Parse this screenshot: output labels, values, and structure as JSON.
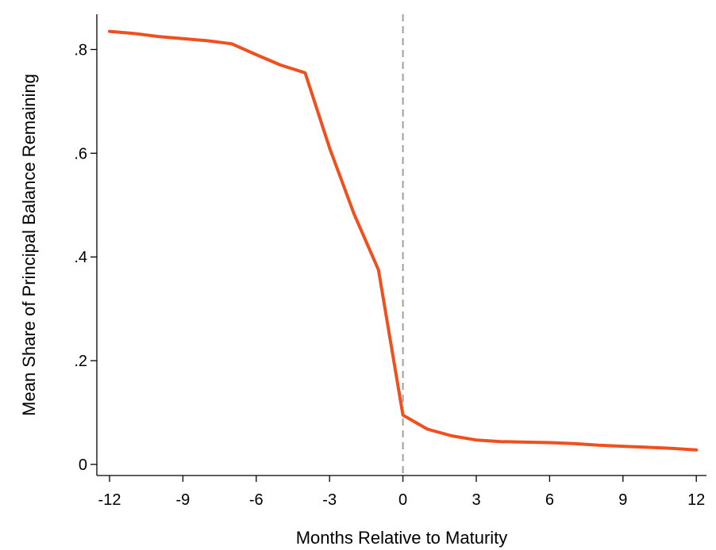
{
  "chart_data": {
    "type": "line",
    "title": "",
    "xlabel": "Months Relative to Maturity",
    "ylabel": "Mean Share of Principal Balance Remaining",
    "xlim": [
      -12.5,
      12.5
    ],
    "ylim": [
      -0.025,
      0.86
    ],
    "x_ticks": [
      -12,
      -9,
      -6,
      -3,
      0,
      3,
      6,
      9,
      12
    ],
    "x_tick_labels": [
      "-12",
      "-9",
      "-6",
      "-3",
      "0",
      "3",
      "6",
      "9",
      "12"
    ],
    "y_ticks": [
      0,
      0.2,
      0.4,
      0.6,
      0.8
    ],
    "y_tick_labels": [
      "0",
      ".2",
      ".4",
      ".6",
      ".8"
    ],
    "grid": false,
    "reference_line": {
      "x": 0,
      "style": "dashed",
      "color": "#a0a0a0"
    },
    "series": [
      {
        "color": "#f0501e",
        "x": [
          -12,
          -11,
          -10,
          -9,
          -8,
          -7,
          -6,
          -5,
          -4,
          -3,
          -2,
          -1,
          0,
          1,
          2,
          3,
          4,
          5,
          6,
          7,
          8,
          9,
          10,
          11,
          12
        ],
        "y": [
          0.835,
          0.831,
          0.825,
          0.821,
          0.817,
          0.811,
          0.79,
          0.77,
          0.755,
          0.61,
          0.483,
          0.375,
          0.095,
          0.068,
          0.055,
          0.047,
          0.044,
          0.043,
          0.042,
          0.04,
          0.037,
          0.035,
          0.033,
          0.031,
          0.028
        ]
      }
    ]
  }
}
